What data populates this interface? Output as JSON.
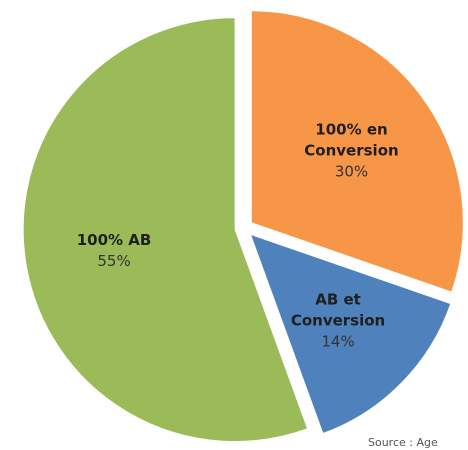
{
  "chart_data": {
    "type": "pie",
    "categories": [
      "100% en Conversion",
      "AB et Conversion",
      "100% AB"
    ],
    "values": [
      30,
      14,
      55
    ],
    "value_labels": [
      "30%",
      "14%",
      "55%"
    ],
    "colors": [
      "#f79646",
      "#4f81bd",
      "#9bbb59"
    ],
    "source": "Source : Age"
  }
}
